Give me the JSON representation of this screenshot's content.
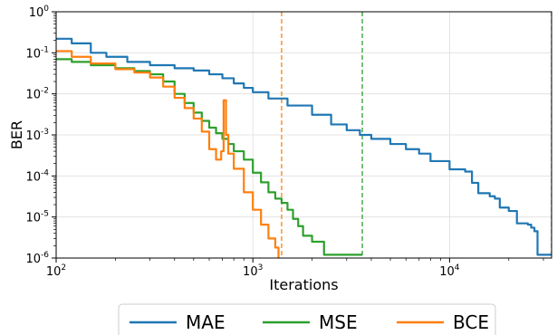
{
  "chart_data": {
    "type": "line",
    "xlabel": "Iterations",
    "ylabel": "BER",
    "x_scale": "log",
    "y_scale": "log",
    "xlim": [
      100,
      33000
    ],
    "ylim": [
      1e-06,
      1
    ],
    "grid": true,
    "x_ticks": [
      {
        "value": 100,
        "base": "10",
        "exp": "2"
      },
      {
        "value": 1000,
        "base": "10",
        "exp": "3"
      },
      {
        "value": 10000,
        "base": "10",
        "exp": "4"
      }
    ],
    "y_ticks": [
      {
        "value": 1,
        "base": "10",
        "exp": "0"
      },
      {
        "value": 0.1,
        "base": "10",
        "exp": "-1"
      },
      {
        "value": 0.01,
        "base": "10",
        "exp": "-2"
      },
      {
        "value": 0.001,
        "base": "10",
        "exp": "-3"
      },
      {
        "value": 0.0001,
        "base": "10",
        "exp": "-4"
      },
      {
        "value": 1e-05,
        "base": "10",
        "exp": "-5"
      },
      {
        "value": 1e-06,
        "base": "10",
        "exp": "-6"
      }
    ],
    "legend_position": "bottom-outside",
    "series": [
      {
        "name": "MAE",
        "color": "#1f77b4",
        "stop_iteration": 33000,
        "x": [
          100,
          120,
          150,
          180,
          230,
          300,
          400,
          500,
          600,
          700,
          800,
          900,
          1000,
          1200,
          1500,
          2000,
          2500,
          3000,
          3500,
          4000,
          5000,
          6000,
          7000,
          8000,
          10000,
          11000,
          12000,
          13000,
          14000,
          16000,
          17000,
          18000,
          20000,
          22000,
          25000,
          26000,
          27000,
          28000,
          30000,
          33000
        ],
        "y": [
          0.22,
          0.17,
          0.1,
          0.08,
          0.06,
          0.05,
          0.042,
          0.037,
          0.03,
          0.024,
          0.018,
          0.014,
          0.011,
          0.0077,
          0.0052,
          0.0031,
          0.0018,
          0.0013,
          0.001,
          0.0008,
          0.0006,
          0.00045,
          0.00035,
          0.00023,
          0.000145,
          0.000145,
          0.000128,
          6.8e-05,
          3.8e-05,
          3.2e-05,
          2.8e-05,
          1.7e-05,
          1.4e-05,
          7e-06,
          6.5e-06,
          5.5e-06,
          4.5e-06,
          1.2e-06,
          1.2e-06,
          1.2e-06
        ]
      },
      {
        "name": "MSE",
        "color": "#2ca02c",
        "stop_iteration": 3600,
        "x": [
          100,
          120,
          150,
          200,
          250,
          300,
          350,
          400,
          450,
          500,
          550,
          600,
          650,
          700,
          750,
          800,
          900,
          1000,
          1100,
          1200,
          1300,
          1400,
          1500,
          1600,
          1700,
          1800,
          2000,
          2200,
          2300,
          2500,
          2600,
          3600
        ],
        "y": [
          0.07,
          0.06,
          0.05,
          0.042,
          0.036,
          0.03,
          0.02,
          0.01,
          0.006,
          0.0035,
          0.0022,
          0.0015,
          0.0011,
          0.0008,
          0.0006,
          0.0004,
          0.00025,
          0.00012,
          7e-05,
          4e-05,
          2.8e-05,
          2.2e-05,
          1.5e-05,
          9e-06,
          6e-06,
          3.5e-06,
          2.5e-06,
          2.5e-06,
          1.2e-06,
          1.2e-06,
          1.2e-06,
          1.2e-06
        ]
      },
      {
        "name": "BCE",
        "color": "#ff7f0e",
        "stop_iteration": 1400,
        "x": [
          100,
          120,
          150,
          200,
          250,
          300,
          350,
          400,
          450,
          500,
          550,
          600,
          650,
          690,
          710,
          730,
          750,
          800,
          900,
          1000,
          1100,
          1200,
          1300,
          1350
        ],
        "y": [
          0.11,
          0.08,
          0.055,
          0.04,
          0.033,
          0.025,
          0.015,
          0.008,
          0.0045,
          0.0025,
          0.0012,
          0.00045,
          0.00025,
          0.0004,
          0.007,
          0.001,
          0.00035,
          0.00015,
          4e-05,
          1.5e-05,
          6.5e-06,
          3e-06,
          1.8e-06,
          1e-06
        ]
      }
    ]
  }
}
